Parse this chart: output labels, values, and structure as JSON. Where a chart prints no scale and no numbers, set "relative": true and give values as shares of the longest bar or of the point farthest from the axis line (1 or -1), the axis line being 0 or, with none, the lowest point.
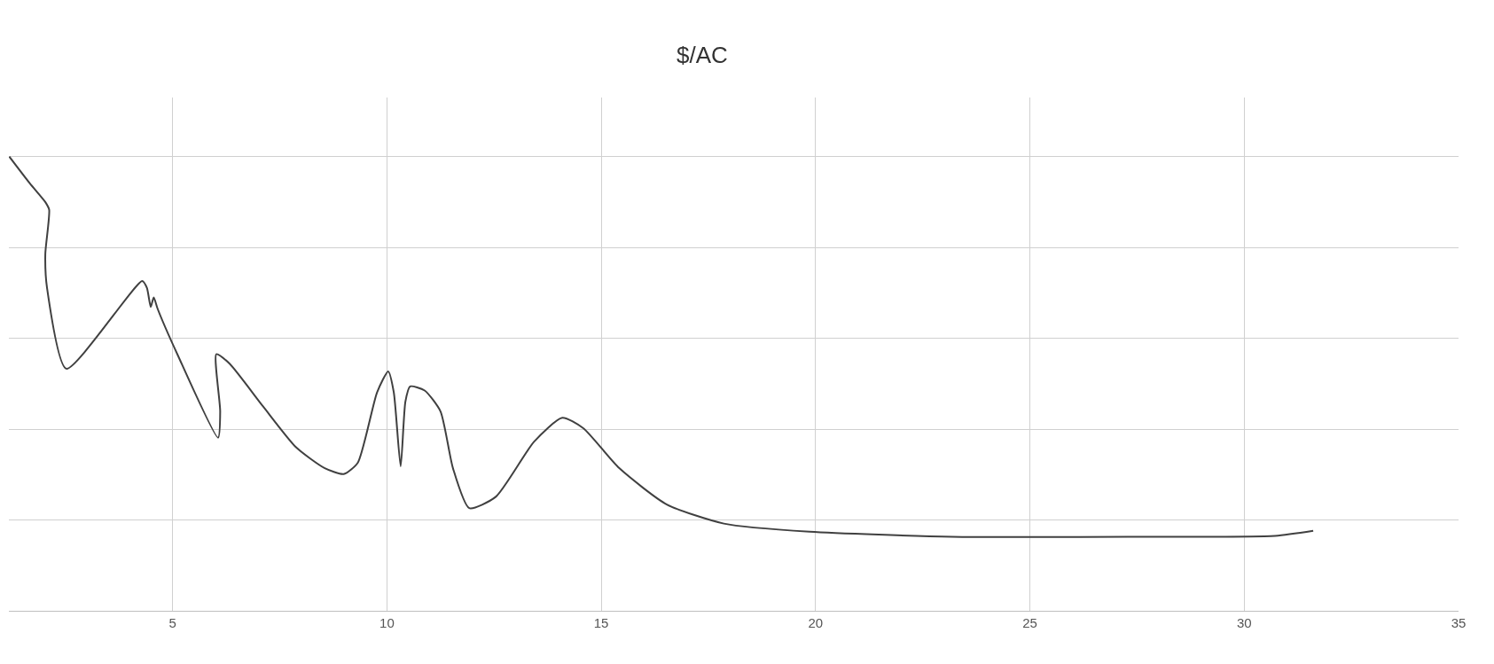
{
  "chart_data": {
    "type": "line",
    "title": "$/AC",
    "relative": true,
    "grid": true,
    "marker": "none",
    "line_style": "solid",
    "xlim": [
      1.18,
      35
    ],
    "xticks": [
      5,
      10,
      15,
      20,
      25,
      30,
      35
    ],
    "series": [
      {
        "color": "#404040",
        "x": [
          1.19,
          1.67,
          2.03,
          2.12,
          2.03,
          2.07,
          2.52,
          4.29,
          4.4,
          4.49,
          4.56,
          4.65,
          5.11,
          6.06,
          6.11,
          6.02,
          6.33,
          7.11,
          7.88,
          8.55,
          8.99,
          9.32,
          9.77,
          10.03,
          10.16,
          10.32,
          10.43,
          10.54,
          10.88,
          11.25,
          11.54,
          11.92,
          12.54,
          13.43,
          14.09,
          14.58,
          15.42,
          16.53,
          17.86,
          19.86,
          23.18,
          27.62,
          30.72,
          31.61
        ],
        "values": [
          1.0,
          0.941,
          0.9,
          0.883,
          0.785,
          0.711,
          0.533,
          0.726,
          0.711,
          0.669,
          0.69,
          0.665,
          0.565,
          0.381,
          0.439,
          0.565,
          0.544,
          0.45,
          0.36,
          0.314,
          0.301,
          0.326,
          0.481,
          0.527,
          0.481,
          0.318,
          0.46,
          0.494,
          0.485,
          0.439,
          0.314,
          0.226,
          0.251,
          0.372,
          0.425,
          0.402,
          0.314,
          0.234,
          0.192,
          0.174,
          0.163,
          0.163,
          0.165,
          0.176
        ]
      }
    ]
  }
}
